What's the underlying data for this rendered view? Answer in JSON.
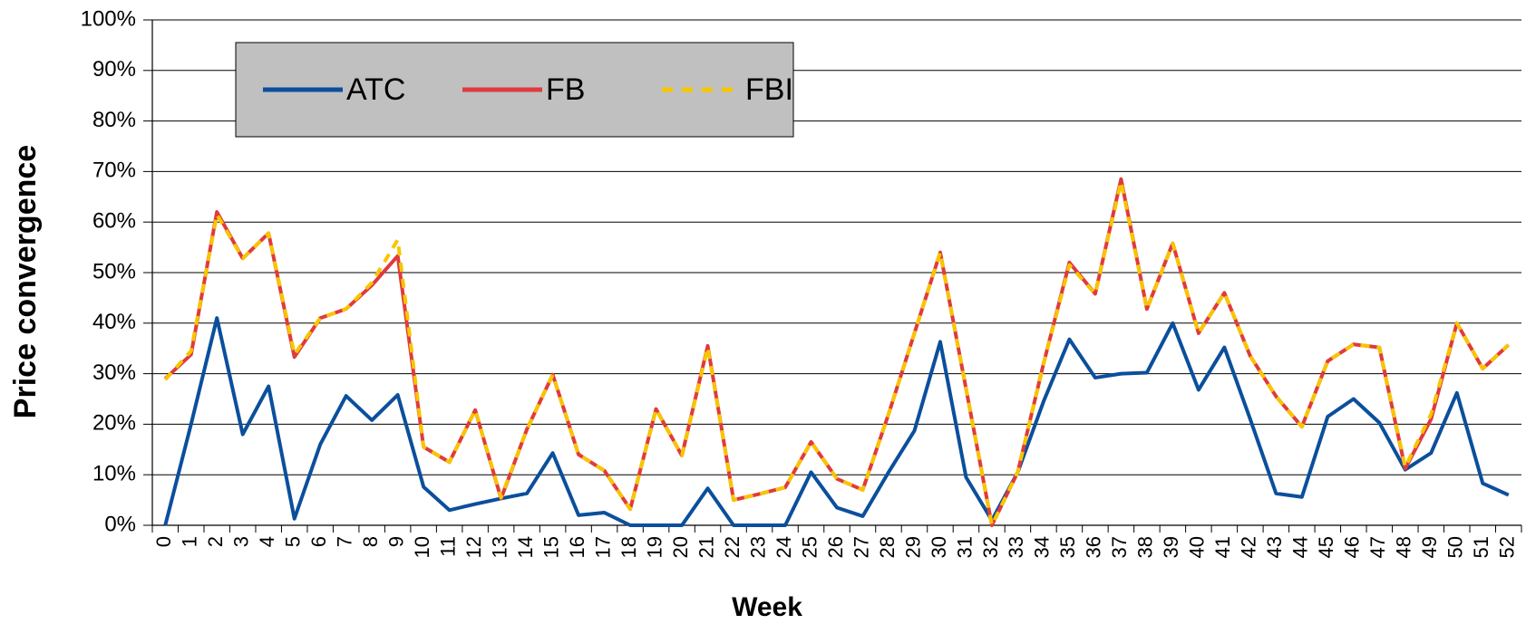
{
  "chart_data": {
    "type": "line",
    "x_label": "Week",
    "y_label": "Price convergence",
    "categories": [
      "0",
      "1",
      "2",
      "3",
      "4",
      "5",
      "6",
      "7",
      "8",
      "9",
      "10",
      "11",
      "12",
      "13",
      "14",
      "15",
      "16",
      "17",
      "18",
      "19",
      "20",
      "21",
      "22",
      "23",
      "24",
      "25",
      "26",
      "27",
      "28",
      "29",
      "30",
      "31",
      "32",
      "33",
      "34",
      "35",
      "36",
      "37",
      "38",
      "39",
      "40",
      "41",
      "42",
      "43",
      "44",
      "45",
      "46",
      "47",
      "48",
      "49",
      "50",
      "51",
      "52"
    ],
    "series": [
      {
        "name": "ATC",
        "color": "#0b4f9c",
        "dash": "solid",
        "values": [
          0,
          20,
          41,
          18,
          27.5,
          1.3,
          16,
          25.6,
          20.8,
          25.8,
          7.6,
          3,
          4.2,
          5.3,
          6.3,
          14.3,
          2,
          2.5,
          0,
          0,
          0,
          7.3,
          0,
          0,
          0,
          10.5,
          3.5,
          1.8,
          10.5,
          18.7,
          36.3,
          9.5,
          1,
          10.5,
          24.5,
          36.8,
          29.2,
          30,
          30.2,
          40,
          26.8,
          35.2,
          21,
          6.3,
          5.6,
          21.5,
          25,
          20.3,
          11,
          14.3,
          26.2,
          8.3,
          6
        ]
      },
      {
        "name": "FB",
        "color": "#e03a3e",
        "dash": "solid",
        "values": [
          29,
          33.8,
          62,
          52.8,
          57.8,
          33.3,
          41,
          42.8,
          47.5,
          53.3,
          15.5,
          12.5,
          22.8,
          5.3,
          19,
          29.8,
          14,
          10.8,
          3.2,
          23,
          13.8,
          35.5,
          5,
          6.2,
          7.5,
          16.5,
          9.2,
          7,
          22,
          38,
          54,
          27,
          0,
          10.5,
          32,
          52,
          45.8,
          68.5,
          42.8,
          55.8,
          38,
          46,
          33.5,
          25.5,
          19.5,
          32.5,
          35.8,
          35.2,
          11.2,
          21,
          40,
          31,
          35.7
        ]
      },
      {
        "name": "FBI",
        "color": "#f7c600",
        "dash": "dashed",
        "values": [
          28.8,
          34.5,
          61.5,
          52.8,
          57.8,
          33.8,
          41,
          42.8,
          48,
          56.5,
          15.5,
          12.5,
          22.8,
          5.5,
          19,
          29.8,
          14,
          10.8,
          3.2,
          23,
          13.8,
          35.2,
          5,
          6.2,
          7.5,
          16.5,
          9.2,
          7,
          22,
          38,
          54,
          27,
          0,
          10.5,
          32,
          51.5,
          45.8,
          68,
          42.8,
          55.8,
          38,
          46,
          33.5,
          25.5,
          19.5,
          32.5,
          35.8,
          35.2,
          11.5,
          22,
          40,
          31,
          35.7
        ]
      }
    ],
    "ylim": [
      0,
      100
    ],
    "yticks": [
      {
        "value": 0,
        "label": "0%"
      },
      {
        "value": 10,
        "label": "10%"
      },
      {
        "value": 20,
        "label": "20%"
      },
      {
        "value": 30,
        "label": "30%"
      },
      {
        "value": 40,
        "label": "40%"
      },
      {
        "value": 50,
        "label": "50%"
      },
      {
        "value": 60,
        "label": "60%"
      },
      {
        "value": 70,
        "label": "70%"
      },
      {
        "value": 80,
        "label": "80%"
      },
      {
        "value": 90,
        "label": "90%"
      },
      {
        "value": 100,
        "label": "100%"
      }
    ],
    "grid": true,
    "legend": "upper left"
  }
}
